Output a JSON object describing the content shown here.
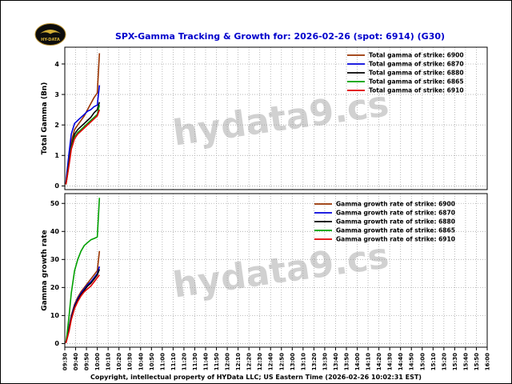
{
  "header": {
    "title": "SPX-Gamma Tracking & Growth for: 2026-02-26 (spot: 6914) (G30)",
    "logo_text": "HY-DATA"
  },
  "footer": {
    "copyright": "Copyright, intellectual property of HYData LLC; US Eastern Time (2026-02-26 10:02:31 EST)"
  },
  "watermark": "hydata9.cs",
  "colors": {
    "title": "#0000cc",
    "strike_6900": "#993300",
    "strike_6870": "#0000dd",
    "strike_6880": "#000000",
    "strike_6865": "#00a000",
    "strike_6910": "#e00000",
    "grid": "#a8a8a8"
  },
  "x_axis": {
    "start": "09:30",
    "end": "16:00",
    "tick_interval_min": 10,
    "total_minutes": 390,
    "tick_labels": [
      "09:30",
      "09:40",
      "09:50",
      "10:00",
      "10:10",
      "10:20",
      "10:30",
      "10:40",
      "10:50",
      "11:00",
      "11:10",
      "11:20",
      "11:30",
      "11:40",
      "11:50",
      "12:00",
      "12:10",
      "12:20",
      "12:30",
      "12:40",
      "12:50",
      "13:00",
      "13:10",
      "13:20",
      "13:30",
      "13:40",
      "13:50",
      "14:00",
      "14:10",
      "14:20",
      "14:30",
      "14:40",
      "14:50",
      "15:00",
      "15:10",
      "15:20",
      "15:30",
      "15:40",
      "15:50",
      "16:00"
    ]
  },
  "chart_data": [
    {
      "type": "line",
      "ylabel": "Total Gamma (Bn)",
      "ylim": [
        -0.12,
        4.55
      ],
      "yticks": [
        0,
        1,
        2,
        3,
        4
      ],
      "grid": true,
      "legend_position": "upper right",
      "x_minutes": [
        1,
        2,
        4,
        6,
        9,
        12,
        15,
        18,
        21,
        24,
        27,
        30,
        32
      ],
      "series": [
        {
          "name": "Total gamma of strike: 6900",
          "color": "#993300",
          "values": [
            0.05,
            0.3,
            0.9,
            1.45,
            1.85,
            2.0,
            2.15,
            2.3,
            2.5,
            2.7,
            2.9,
            3.05,
            4.35
          ]
        },
        {
          "name": "Total gamma of strike: 6870",
          "color": "#0000dd",
          "values": [
            0.1,
            0.45,
            1.1,
            1.7,
            2.05,
            2.15,
            2.25,
            2.35,
            2.45,
            2.5,
            2.6,
            2.65,
            3.3
          ]
        },
        {
          "name": "Total gamma of strike: 6880",
          "color": "#000000",
          "values": [
            0.05,
            0.3,
            0.8,
            1.3,
            1.7,
            1.85,
            1.95,
            2.05,
            2.15,
            2.25,
            2.4,
            2.5,
            2.75
          ]
        },
        {
          "name": "Total gamma of strike: 6865",
          "color": "#00a000",
          "values": [
            0.05,
            0.25,
            0.75,
            1.25,
            1.6,
            1.75,
            1.85,
            1.95,
            2.05,
            2.15,
            2.25,
            2.35,
            2.65
          ]
        },
        {
          "name": "Total gamma of strike: 6910",
          "color": "#e00000",
          "values": [
            0.05,
            0.25,
            0.7,
            1.2,
            1.55,
            1.7,
            1.8,
            1.9,
            2.0,
            2.1,
            2.2,
            2.3,
            2.5
          ]
        }
      ]
    },
    {
      "type": "line",
      "ylabel": "Gamma growth rate",
      "ylim": [
        -1.3,
        53.5
      ],
      "yticks": [
        0,
        10,
        20,
        30,
        40,
        50
      ],
      "grid": true,
      "legend_position": "upper right",
      "x_minutes": [
        1,
        2,
        4,
        6,
        9,
        12,
        15,
        18,
        21,
        24,
        27,
        30,
        32
      ],
      "series": [
        {
          "name": "Gamma growth rate of strike: 6900",
          "color": "#993300",
          "values": [
            0.3,
            2,
            6,
            10,
            14,
            16.5,
            18.5,
            20,
            21.5,
            23,
            24.5,
            26,
            33
          ]
        },
        {
          "name": "Gamma growth rate of strike: 6870",
          "color": "#0000dd",
          "values": [
            0.3,
            2,
            5.5,
            9.5,
            13.5,
            16,
            18,
            19.5,
            21,
            22,
            23.5,
            25,
            27.5
          ]
        },
        {
          "name": "Gamma growth rate of strike: 6880",
          "color": "#000000",
          "values": [
            0.2,
            1.8,
            5,
            9,
            13,
            15.5,
            17.5,
            19,
            20.5,
            21.5,
            23,
            24.5,
            26.5
          ]
        },
        {
          "name": "Gamma growth rate of strike: 6865",
          "color": "#00a000",
          "values": [
            0.5,
            3,
            10,
            18,
            26,
            30,
            33,
            35,
            36,
            37,
            37.5,
            38,
            52
          ]
        },
        {
          "name": "Gamma growth rate of strike: 6910",
          "color": "#e00000",
          "values": [
            0.2,
            1.5,
            4.5,
            8.5,
            12.5,
            15,
            17,
            18.5,
            19.5,
            20.5,
            22,
            23.5,
            24.5
          ]
        }
      ]
    }
  ]
}
